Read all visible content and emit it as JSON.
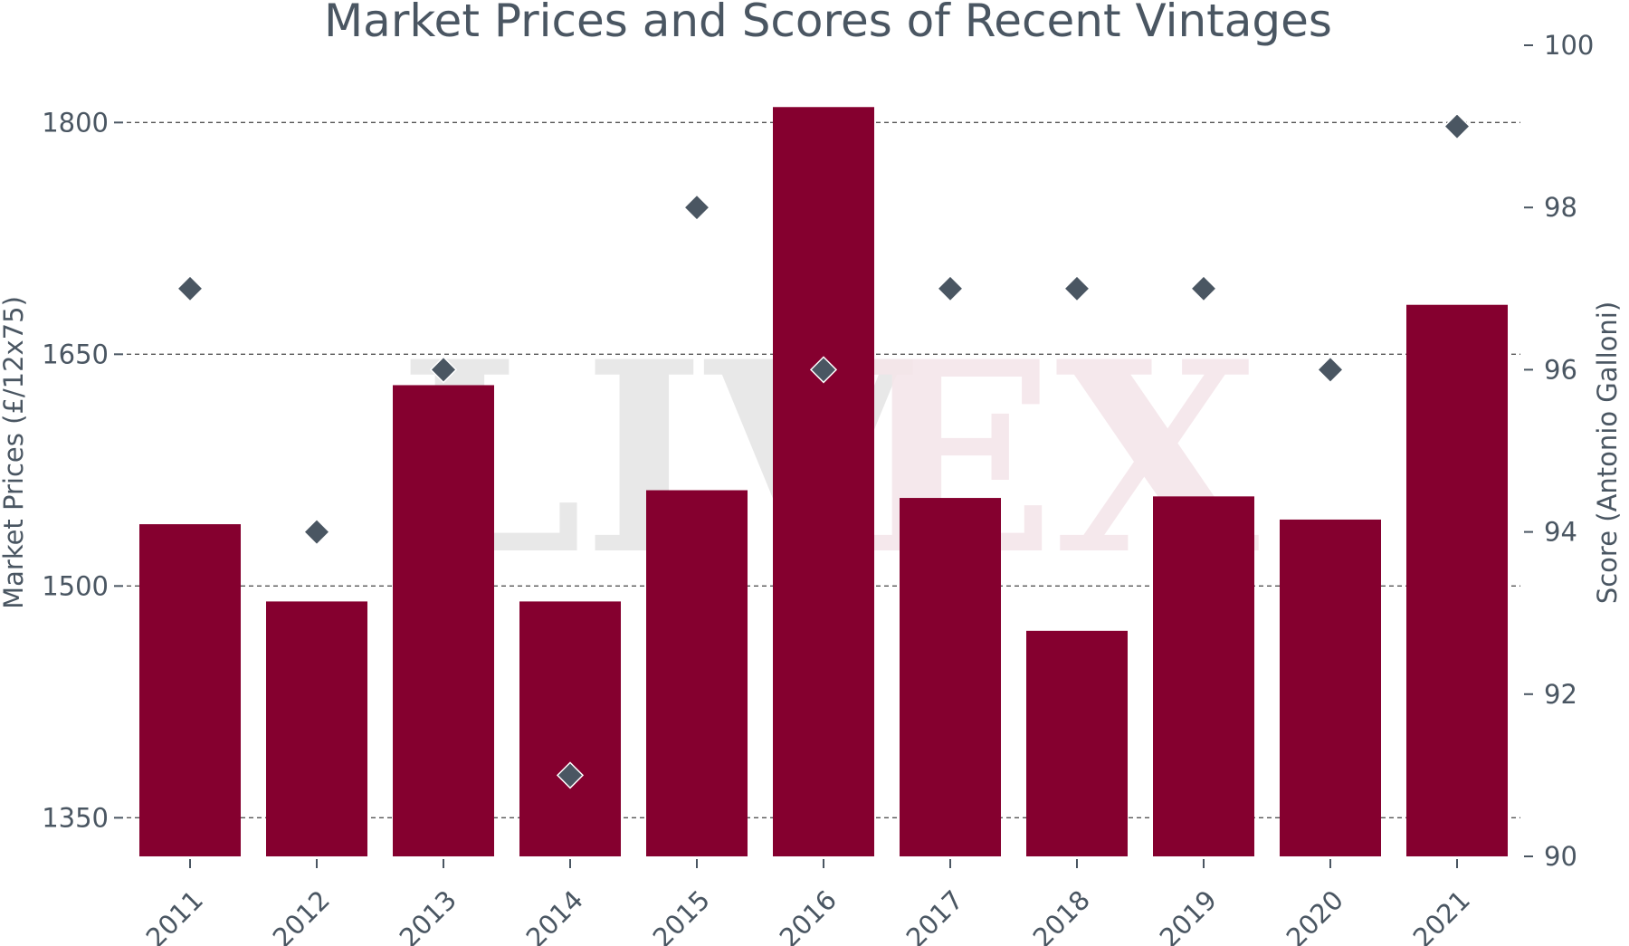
{
  "chart_data": {
    "type": "bar",
    "title": "Market Prices and Scores of Recent Vintages",
    "categories": [
      "2011",
      "2012",
      "2013",
      "2014",
      "2015",
      "2016",
      "2017",
      "2018",
      "2019",
      "2020",
      "2021"
    ],
    "series": [
      {
        "name": "Market Prices (£/12x75)",
        "type": "bar",
        "axis": "left",
        "values": [
          1540,
          1490,
          1630,
          1490,
          1562,
          1810,
          1557,
          1471,
          1558,
          1543,
          1682
        ]
      },
      {
        "name": "Score (Antonio Galloni)",
        "type": "scatter",
        "marker": "diamond",
        "axis": "right",
        "values": [
          97,
          94,
          96,
          91,
          98,
          96,
          97,
          97,
          97,
          96,
          99
        ]
      }
    ],
    "ylabel": "Market Prices (£/12x75)",
    "y2label": "Score (Antonio Galloni)",
    "ylim": [
      1325,
      1850
    ],
    "y2lim": [
      90,
      100
    ],
    "yticks": [
      1350,
      1500,
      1650,
      1800
    ],
    "y2ticks": [
      90,
      92,
      94,
      96,
      98,
      100
    ],
    "grid": "horizontal dashed",
    "watermark": {
      "left": "LIV",
      "right": "EX"
    },
    "colors": {
      "bar": "#85002f",
      "marker": "#4a5662",
      "text": "#4a5662",
      "grid": "#555555",
      "watermark_left": "#e6e6e6",
      "watermark_right": "#f5e6ea"
    }
  }
}
